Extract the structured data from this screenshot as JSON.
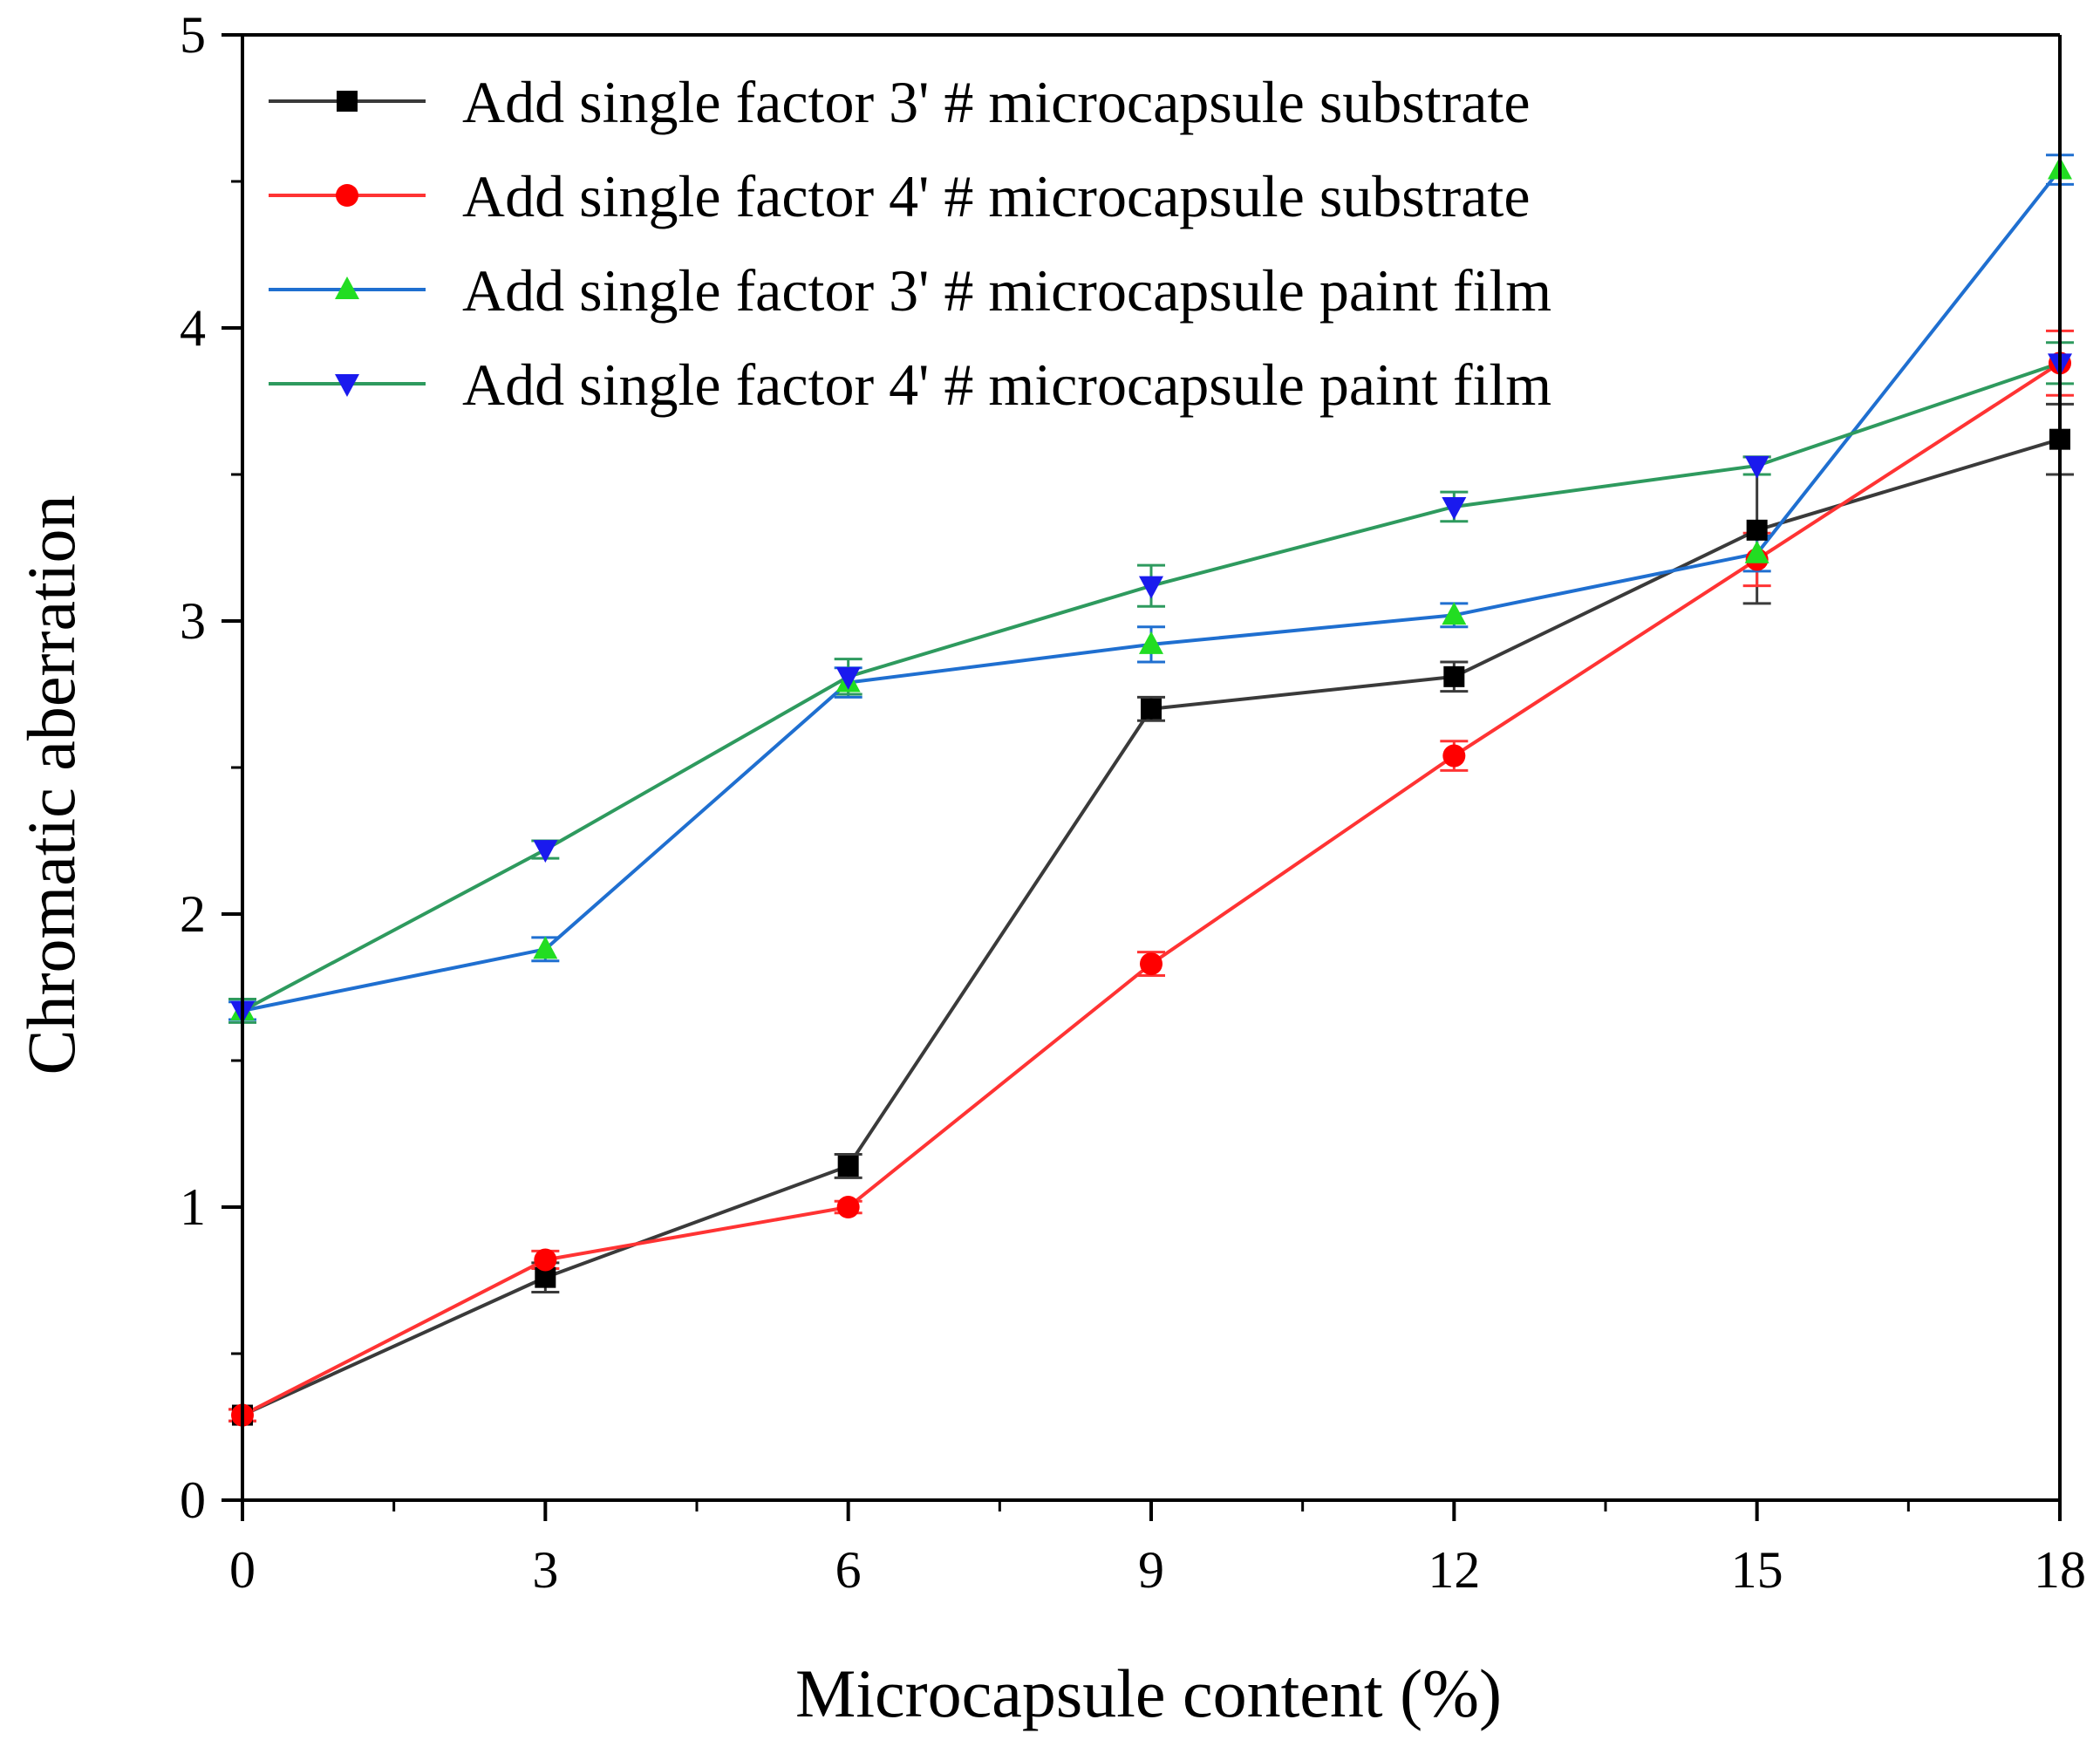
{
  "chart_data": {
    "type": "line",
    "title": "",
    "xlabel": "Microcapsule content (%)",
    "ylabel": "Chromatic aberration",
    "xlim": [
      0,
      18
    ],
    "ylim": [
      0,
      5
    ],
    "x": [
      0,
      3,
      6,
      9,
      12,
      15,
      18
    ],
    "x_tick_labels": [
      "0",
      "3",
      "6",
      "9",
      "12",
      "15",
      "18"
    ],
    "y_tick_labels": [
      "0",
      "1",
      "2",
      "3",
      "4",
      "5"
    ],
    "legend_position": "top-left",
    "grid": false,
    "series": [
      {
        "name": "Add single factor 3' # microcapsule substrate",
        "color": "#3a3a3a",
        "marker_color": "#000000",
        "marker": "square",
        "values": [
          0.29,
          0.76,
          1.14,
          2.7,
          2.81,
          3.31,
          3.62
        ],
        "errors": [
          0.02,
          0.05,
          0.04,
          0.04,
          0.05,
          0.25,
          0.12
        ]
      },
      {
        "name": "Add single factor 4' # microcapsule substrate",
        "color": "#ff3333",
        "marker_color": "#ff0000",
        "marker": "circle",
        "values": [
          0.29,
          0.82,
          1.0,
          1.83,
          2.54,
          3.21,
          3.88
        ],
        "errors": [
          0.02,
          0.03,
          0.02,
          0.04,
          0.05,
          0.09,
          0.11
        ]
      },
      {
        "name": "Add single factor 3' # microcapsule paint film",
        "color": "#1f6fd0",
        "marker_color": "#22dd22",
        "marker": "triangle-up",
        "values": [
          1.67,
          1.88,
          2.79,
          2.92,
          3.02,
          3.23,
          4.54
        ],
        "errors": [
          0.03,
          0.04,
          0.05,
          0.06,
          0.04,
          0.06,
          0.05
        ]
      },
      {
        "name": "Add single factor 4' # microcapsule paint film",
        "color": "#2e9a5e",
        "marker_color": "#1a1aee",
        "marker": "triangle-down",
        "values": [
          1.67,
          2.22,
          2.81,
          3.12,
          3.39,
          3.53,
          3.88
        ],
        "errors": [
          0.04,
          0.03,
          0.06,
          0.07,
          0.05,
          0.03,
          0.07
        ]
      }
    ]
  }
}
